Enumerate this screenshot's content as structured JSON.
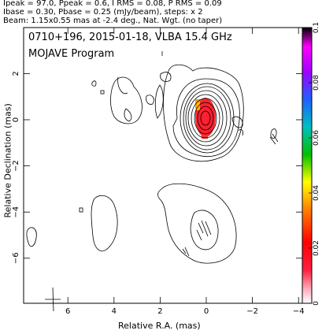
{
  "header": {
    "line1": "Ipeak = 97.0, Ppeak = 0.6, I RMS = 0.08, P RMS = 0.09",
    "line2": "Ibase = 0.30, Pbase = 0.25 (mJy/beam), steps: x 2",
    "line3": "Beam: 1.15x0.55 mas at -2.4 deg., Nat. Wgt. (no taper)"
  },
  "panel": {
    "title": "0710+196, 2015-01-18, VLBA 15.4 GHz",
    "program": "MOJAVE Program"
  },
  "axes": {
    "xlabel": "Relative R.A. (mas)",
    "ylabel": "Relative Declination (mas)",
    "x_ticks": [
      "6",
      "4",
      "2",
      "0",
      "−2",
      "−4"
    ],
    "y_ticks": [
      "2",
      "0",
      "−2",
      "−4",
      "−6"
    ]
  },
  "colorbar": {
    "ticks": [
      "0",
      "0.02",
      "0.04",
      "0.06",
      "0.08",
      "0.1"
    ]
  }
}
